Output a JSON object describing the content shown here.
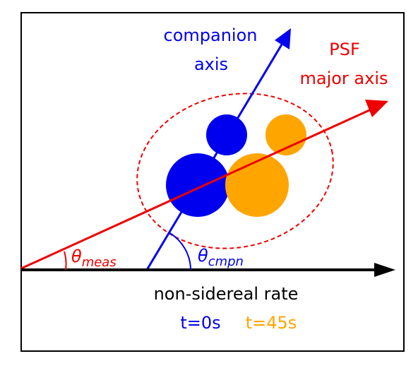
{
  "labels": {
    "companion_axis_line1": "companion",
    "companion_axis_line2": "axis",
    "psf_line1": "PSF",
    "psf_line2": "major axis",
    "x_axis": "non-sidereal rate",
    "time_t0": "t=0s",
    "time_t45": "t=45s"
  },
  "angles": {
    "meas_symbol": "θ",
    "meas_subscript": "meas",
    "cmpn_symbol": "θ",
    "cmpn_subscript": "cmpn"
  },
  "colors": {
    "t0": "#0000ee",
    "t45": "#ffa500",
    "psf": "#ee0000",
    "axis": "#000000",
    "frame": "#000000"
  }
}
